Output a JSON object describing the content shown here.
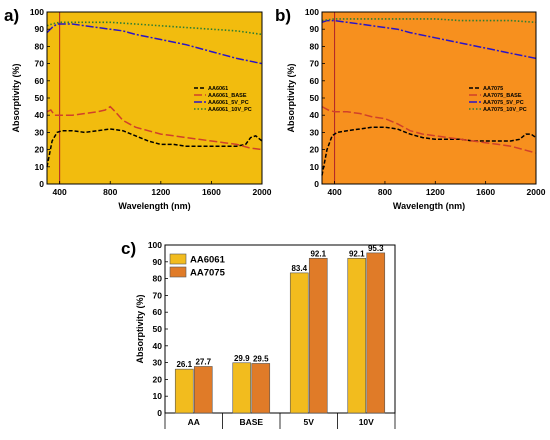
{
  "panel_letters": [
    "a)",
    "b)",
    "c)"
  ],
  "chart_data": [
    {
      "type": "line",
      "panel": "a)",
      "background": "#F2BC0E",
      "xlabel": "Wavelength (nm)",
      "ylabel": "Absorptivity (%)",
      "xlim": [
        300,
        2000
      ],
      "ylim": [
        0,
        100
      ],
      "xticks": [
        "400",
        "800",
        "1200",
        "1600",
        "2000"
      ],
      "yticks": [
        "0",
        "10",
        "20",
        "30",
        "40",
        "50",
        "60",
        "70",
        "80",
        "90",
        "100"
      ],
      "vline_x": 400,
      "legend_position": "center-right",
      "series": [
        {
          "name": "AA6061",
          "color": "#000000",
          "dash": "4,2",
          "points": [
            [
              300,
              10
            ],
            [
              340,
              25
            ],
            [
              380,
              30
            ],
            [
              420,
              31
            ],
            [
              500,
              31
            ],
            [
              600,
              30
            ],
            [
              700,
              31
            ],
            [
              800,
              32
            ],
            [
              900,
              31
            ],
            [
              1000,
              28
            ],
            [
              1100,
              25
            ],
            [
              1200,
              23
            ],
            [
              1300,
              23
            ],
            [
              1400,
              22
            ],
            [
              1500,
              22
            ],
            [
              1600,
              22
            ],
            [
              1700,
              22
            ],
            [
              1800,
              22
            ],
            [
              1870,
              23
            ],
            [
              1910,
              27
            ],
            [
              1950,
              28
            ],
            [
              2000,
              25
            ]
          ]
        },
        {
          "name": "AA6061_BASE",
          "color": "#D0402A",
          "dash": "8,3",
          "points": [
            [
              300,
              42
            ],
            [
              330,
              43
            ],
            [
              360,
              40
            ],
            [
              400,
              40
            ],
            [
              500,
              40
            ],
            [
              600,
              41
            ],
            [
              700,
              42
            ],
            [
              760,
              43
            ],
            [
              800,
              45
            ],
            [
              840,
              42
            ],
            [
              900,
              37
            ],
            [
              1000,
              33
            ],
            [
              1100,
              31
            ],
            [
              1200,
              29
            ],
            [
              1300,
              28
            ],
            [
              1400,
              27
            ],
            [
              1500,
              26
            ],
            [
              1600,
              25
            ],
            [
              1700,
              24
            ],
            [
              1800,
              23
            ],
            [
              1900,
              21
            ],
            [
              2000,
              20
            ]
          ]
        },
        {
          "name": "AA6061_5V_PC",
          "color": "#2A14C8",
          "dash": "8,2,2,2",
          "points": [
            [
              300,
              88
            ],
            [
              340,
              91
            ],
            [
              380,
              93
            ],
            [
              420,
              93
            ],
            [
              500,
              93
            ],
            [
              600,
              92
            ],
            [
              700,
              91
            ],
            [
              800,
              90
            ],
            [
              900,
              89
            ],
            [
              1000,
              87
            ],
            [
              1200,
              84
            ],
            [
              1400,
              81
            ],
            [
              1600,
              77
            ],
            [
              1800,
              73
            ],
            [
              2000,
              70
            ]
          ]
        },
        {
          "name": "AA6061_10V_PC",
          "color": "#2E7D32",
          "dash": "1.5,2",
          "points": [
            [
              300,
              92
            ],
            [
              340,
              93
            ],
            [
              400,
              94
            ],
            [
              600,
              94
            ],
            [
              800,
              94
            ],
            [
              1000,
              93
            ],
            [
              1200,
              92
            ],
            [
              1400,
              91
            ],
            [
              1600,
              90
            ],
            [
              1800,
              89
            ],
            [
              2000,
              87
            ]
          ]
        }
      ]
    },
    {
      "type": "line",
      "panel": "b)",
      "background": "#F7901E",
      "xlabel": "Wavelength (nm)",
      "ylabel": "Absorptivity (%)",
      "xlim": [
        300,
        2000
      ],
      "ylim": [
        0,
        100
      ],
      "xticks": [
        "400",
        "800",
        "1200",
        "1600",
        "2000"
      ],
      "yticks": [
        "0",
        "10",
        "20",
        "30",
        "40",
        "50",
        "60",
        "70",
        "80",
        "90",
        "100"
      ],
      "vline_x": 400,
      "legend_position": "center-right",
      "series": [
        {
          "name": "AA7075",
          "color": "#000000",
          "dash": "4,2",
          "points": [
            [
              300,
              5
            ],
            [
              340,
              20
            ],
            [
              380,
              28
            ],
            [
              420,
              30
            ],
            [
              500,
              31
            ],
            [
              600,
              32
            ],
            [
              700,
              33
            ],
            [
              800,
              33
            ],
            [
              900,
              32
            ],
            [
              1000,
              29
            ],
            [
              1100,
              27
            ],
            [
              1200,
              26
            ],
            [
              1300,
              26
            ],
            [
              1400,
              26
            ],
            [
              1500,
              25
            ],
            [
              1600,
              25
            ],
            [
              1700,
              25
            ],
            [
              1800,
              25
            ],
            [
              1870,
              26
            ],
            [
              1920,
              29
            ],
            [
              1960,
              29
            ],
            [
              2000,
              27
            ]
          ]
        },
        {
          "name": "AA7075_BASE",
          "color": "#D0402A",
          "dash": "8,3",
          "points": [
            [
              300,
              45
            ],
            [
              350,
              43
            ],
            [
              400,
              42
            ],
            [
              500,
              42
            ],
            [
              600,
              41
            ],
            [
              700,
              39
            ],
            [
              800,
              38
            ],
            [
              900,
              35
            ],
            [
              1000,
              31
            ],
            [
              1100,
              29
            ],
            [
              1200,
              28
            ],
            [
              1300,
              27
            ],
            [
              1400,
              26
            ],
            [
              1500,
              25
            ],
            [
              1600,
              24
            ],
            [
              1700,
              23
            ],
            [
              1800,
              22
            ],
            [
              1900,
              20
            ],
            [
              2000,
              18
            ]
          ]
        },
        {
          "name": "AA7075_5V_PC",
          "color": "#2A14C8",
          "dash": "8,2,2,2",
          "points": [
            [
              300,
              94
            ],
            [
              340,
              95
            ],
            [
              400,
              95
            ],
            [
              500,
              94
            ],
            [
              600,
              93
            ],
            [
              700,
              92
            ],
            [
              800,
              91
            ],
            [
              900,
              90
            ],
            [
              1000,
              88
            ],
            [
              1200,
              85
            ],
            [
              1400,
              82
            ],
            [
              1600,
              79
            ],
            [
              1800,
              76
            ],
            [
              2000,
              73
            ]
          ]
        },
        {
          "name": "AA7075_10V_PC",
          "color": "#2E7D32",
          "dash": "1.5,2",
          "points": [
            [
              300,
              95
            ],
            [
              400,
              96
            ],
            [
              600,
              96
            ],
            [
              800,
              96
            ],
            [
              1000,
              96
            ],
            [
              1200,
              96
            ],
            [
              1400,
              95
            ],
            [
              1600,
              95
            ],
            [
              1800,
              95
            ],
            [
              2000,
              94
            ]
          ]
        }
      ]
    },
    {
      "type": "bar",
      "panel": "c)",
      "ylabel": "Absorptivity (%)",
      "ylim": [
        0,
        100
      ],
      "yticks": [
        "0",
        "10",
        "20",
        "30",
        "40",
        "50",
        "60",
        "70",
        "80",
        "90",
        "100"
      ],
      "categories": [
        "AA",
        "BASE",
        "5V",
        "10V"
      ],
      "legend_position": "top-left",
      "series": [
        {
          "name": "AA6061",
          "color": "#F2BC1E",
          "values": [
            26.1,
            29.9,
            83.4,
            92.1
          ],
          "labels": [
            "26.1",
            "29.9",
            "83.4",
            "92.1"
          ]
        },
        {
          "name": "AA7075",
          "color": "#E07B28",
          "values": [
            27.7,
            29.5,
            92.1,
            95.3
          ],
          "labels": [
            "27.7",
            "29.5",
            "92.1",
            "95.3"
          ]
        }
      ]
    }
  ]
}
